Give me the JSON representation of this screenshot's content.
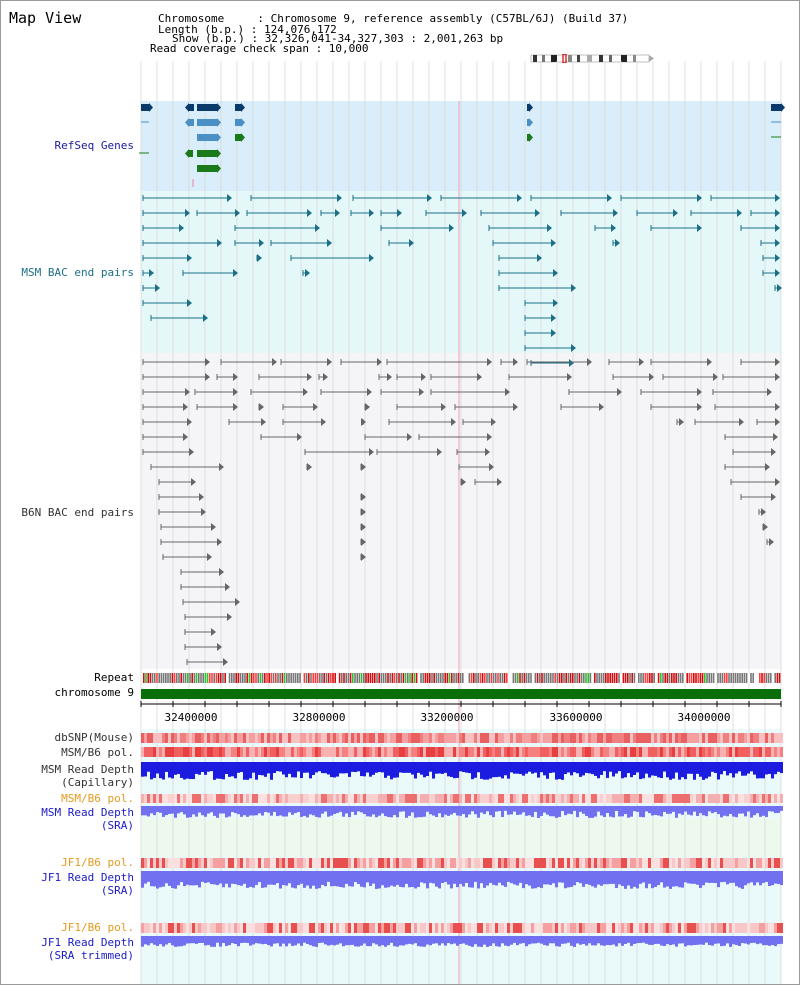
{
  "header": {
    "title": "Map View",
    "lines": [
      "Chromosome     : Chromosome 9, reference assembly (C57BL/6J) (Build 37)",
      "Length (b.p.) : 124,076,172",
      "Show (b.p.) : 32,326,041-34,327,303 : 2,001,263 bp",
      "Read coverage check span : 10,000"
    ]
  },
  "tracks": {
    "refseq": "RefSeq Genes",
    "msm_bac": "MSM BAC end pairs",
    "b6n_bac": "B6N BAC end pairs",
    "repeat": "Repeat",
    "chrom": "chromosome 9",
    "dbsnp": "dbSNP(Mouse)",
    "msm_pol": "MSM/B6 pol.",
    "msm_depth_cap_1": "MSM Read Depth",
    "msm_depth_cap_2": "(Capillary)",
    "msm_pol_sra": "MSM/B6 pol.",
    "msm_depth_sra_1": "MSM Read Depth",
    "msm_depth_sra_2": "(SRA)",
    "jf1_pol": "JF1/B6 pol.",
    "jf1_depth_1": "JF1 Read Depth",
    "jf1_depth_2": "(SRA)",
    "jf1_pol_trim": "JF1/B6 pol.",
    "jf1_depth_trim_1": "JF1 Read Depth",
    "jf1_depth_trim_2": "(SRA trimmed)"
  },
  "axis_ticks": [
    "32400000",
    "32800000",
    "33200000",
    "33600000",
    "34000000"
  ],
  "colors": {
    "gene_dark": "#0a3a6a",
    "gene_mid": "#4a90c4",
    "gene_green": "#1a7a1a",
    "msm_line": "#1c6f86",
    "b6n_line": "#666666",
    "chrom_bar": "#0a6e0a",
    "depth_blue": "#1c1ce0",
    "depth_light": "#7070f0"
  }
}
